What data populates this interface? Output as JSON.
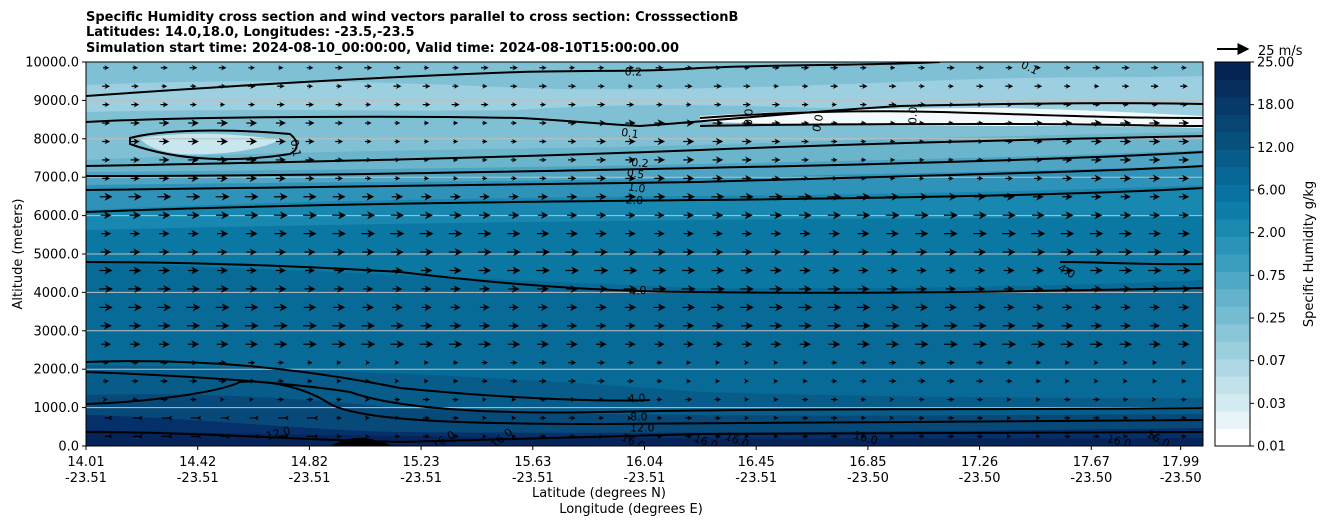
{
  "chart_data": {
    "type": "contour",
    "title_lines": [
      "Specific Humidity cross section and wind vectors parallel to cross section: CrosssectionB",
      "Latitudes: 14.0,18.0, Longitudes: -23.5,-23.5",
      "Simulation start time: 2024-08-10_00:00:00, Valid time: 2024-08-10T15:00:00.00"
    ],
    "xlabel_lat": "Latitude (degrees N)",
    "xlabel_lon": "Longitude (degrees E)",
    "ylabel": "Altitude (meters)",
    "ylim": [
      0,
      10000
    ],
    "xlim": [
      0,
      1
    ],
    "y_ticks": [
      {
        "value": 0,
        "label": "0.0"
      },
      {
        "value": 1000,
        "label": "1000.0"
      },
      {
        "value": 2000,
        "label": "2000.0"
      },
      {
        "value": 3000,
        "label": "3000.0"
      },
      {
        "value": 4000,
        "label": "4000.0"
      },
      {
        "value": 5000,
        "label": "5000.0"
      },
      {
        "value": 6000,
        "label": "6000.0"
      },
      {
        "value": 7000,
        "label": "7000.0"
      },
      {
        "value": 8000,
        "label": "8000.0"
      },
      {
        "value": 9000,
        "label": "9000.0"
      },
      {
        "value": 10000,
        "label": "10000.0"
      }
    ],
    "x_ticks": [
      {
        "pos": 0.0,
        "lat": "14.01",
        "lon": "-23.51"
      },
      {
        "pos": 0.1,
        "lat": "14.42",
        "lon": "-23.51"
      },
      {
        "pos": 0.2,
        "lat": "14.82",
        "lon": "-23.51"
      },
      {
        "pos": 0.3,
        "lat": "15.23",
        "lon": "-23.51"
      },
      {
        "pos": 0.4,
        "lat": "15.63",
        "lon": "-23.51"
      },
      {
        "pos": 0.5,
        "lat": "16.04",
        "lon": "-23.51"
      },
      {
        "pos": 0.6,
        "lat": "16.45",
        "lon": "-23.51"
      },
      {
        "pos": 0.7,
        "lat": "16.85",
        "lon": "-23.50"
      },
      {
        "pos": 0.8,
        "lat": "17.26",
        "lon": "-23.50"
      },
      {
        "pos": 0.9,
        "lat": "17.67",
        "lon": "-23.50"
      },
      {
        "pos": 0.98,
        "lat": "17.99",
        "lon": "-23.50"
      }
    ],
    "colorbar": {
      "label": "Specific Humidity g/kg",
      "levels": [
        "0.01",
        "0.03",
        "0.07",
        "0.25",
        "0.75",
        "2.00",
        "6.00",
        "12.00",
        "18.00",
        "25.00"
      ],
      "level_values": [
        0.01,
        0.03,
        0.07,
        0.25,
        0.75,
        2.0,
        6.0,
        12.0,
        18.0,
        25.0
      ],
      "colors": [
        "#ffffff",
        "#e8f4f7",
        "#d4ebf1",
        "#c2e2eb",
        "#aed8e4",
        "#9bcfde",
        "#88c6d8",
        "#75bcd2",
        "#64b2cb",
        "#4fa8c5",
        "#3c9ebf",
        "#2c93b8",
        "#1c89b1",
        "#0e7ea9",
        "#0a72a0",
        "#086794",
        "#075c89",
        "#07507e",
        "#074573",
        "#073a68",
        "#062f5e",
        "#052454"
      ]
    },
    "quiver_key": {
      "label": "25 m/s",
      "value": 25
    },
    "contour_labels": [
      {
        "text": "0.2",
        "x": 0.49,
        "y": 9750,
        "rot": 0
      },
      {
        "text": "0.1",
        "x": 0.845,
        "y": 9860,
        "rot": 25
      },
      {
        "text": "0.1",
        "x": 0.487,
        "y": 8150,
        "rot": 8
      },
      {
        "text": "0.0",
        "x": 0.593,
        "y": 8560,
        "rot": -88
      },
      {
        "text": "0.0",
        "x": 0.74,
        "y": 8610,
        "rot": -88
      },
      {
        "text": "0.0",
        "x": 0.655,
        "y": 8410,
        "rot": -80
      },
      {
        "text": "0.1",
        "x": 0.188,
        "y": 7760,
        "rot": 80
      },
      {
        "text": "0.2",
        "x": 0.496,
        "y": 7380,
        "rot": 5
      },
      {
        "text": "0.5",
        "x": 0.492,
        "y": 7100,
        "rot": 8
      },
      {
        "text": "1.0",
        "x": 0.493,
        "y": 6730,
        "rot": 8
      },
      {
        "text": "2.0",
        "x": 0.491,
        "y": 6410,
        "rot": 3
      },
      {
        "text": "4.0",
        "x": 0.494,
        "y": 4050,
        "rot": -5
      },
      {
        "text": "4.0",
        "x": 0.878,
        "y": 4560,
        "rot": 30
      },
      {
        "text": "4.0",
        "x": 0.493,
        "y": 1250,
        "rot": -3
      },
      {
        "text": "8.0",
        "x": 0.495,
        "y": 770,
        "rot": 0
      },
      {
        "text": "12.0",
        "x": 0.498,
        "y": 480,
        "rot": 0
      },
      {
        "text": "12.0",
        "x": 0.172,
        "y": 340,
        "rot": -15
      },
      {
        "text": "16.0",
        "x": 0.32,
        "y": 170,
        "rot": -30
      },
      {
        "text": "16.0",
        "x": 0.372,
        "y": 210,
        "rot": -40
      },
      {
        "text": "16.0",
        "x": 0.49,
        "y": 120,
        "rot": 25
      },
      {
        "text": "16.0",
        "x": 0.555,
        "y": 120,
        "rot": 20
      },
      {
        "text": "16.0",
        "x": 0.583,
        "y": 160,
        "rot": 22
      },
      {
        "text": "16.0",
        "x": 0.698,
        "y": 220,
        "rot": 15
      },
      {
        "text": "16.0",
        "x": 0.925,
        "y": 130,
        "rot": 15
      },
      {
        "text": "16.0",
        "x": 0.96,
        "y": 190,
        "rot": 30
      }
    ]
  }
}
